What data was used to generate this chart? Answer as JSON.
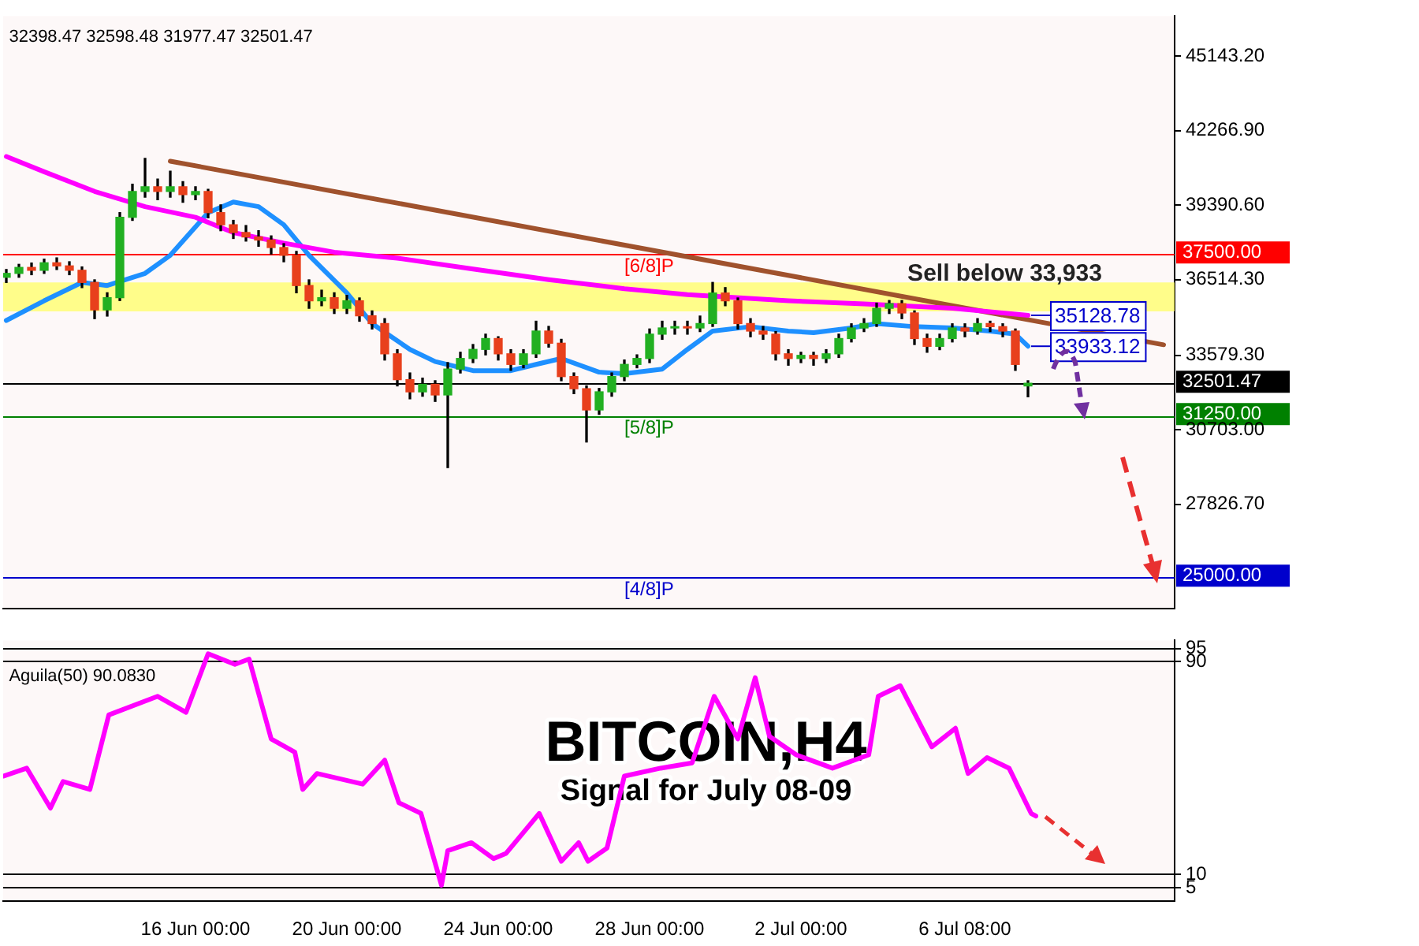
{
  "chart_data": [
    {
      "type": "candlestick",
      "x": [
        "--06-11T00:00",
        "--06-11T08:00",
        "--06-11T16:00",
        "--06-12T00:00",
        "--06-12T08:00",
        "--06-12T16:00",
        "--06-13T00:00",
        "--06-13T08:00",
        "--06-13T16:00",
        "--06-14T00:00",
        "--06-14T08:00",
        "--06-14T16:00",
        "--06-15T00:00",
        "--06-15T08:00",
        "--06-15T16:00",
        "--06-16T00:00",
        "--06-16T08:00",
        "--06-16T16:00",
        "--06-17T00:00",
        "--06-17T08:00",
        "--06-17T16:00",
        "--06-18T00:00",
        "--06-18T08:00",
        "--06-18T16:00",
        "--06-19T00:00",
        "--06-19T08:00",
        "--06-19T16:00",
        "--06-20T00:00",
        "--06-20T08:00",
        "--06-20T16:00",
        "--06-21T00:00",
        "--06-21T08:00",
        "--06-21T16:00",
        "--06-22T00:00",
        "--06-22T08:00",
        "--06-22T16:00",
        "--06-23T00:00",
        "--06-23T08:00",
        "--06-23T16:00",
        "--06-24T00:00",
        "--06-24T08:00",
        "--06-24T16:00",
        "--06-25T00:00",
        "--06-25T08:00",
        "--06-25T16:00",
        "--06-26T00:00",
        "--06-26T08:00",
        "--06-26T16:00",
        "--06-27T00:00",
        "--06-27T08:00",
        "--06-27T16:00",
        "--06-28T00:00",
        "--06-28T08:00",
        "--06-28T16:00",
        "--06-29T00:00",
        "--06-29T08:00",
        "--06-29T16:00",
        "--06-30T00:00",
        "--06-30T08:00",
        "--06-30T16:00",
        "--07-01T00:00",
        "--07-01T08:00",
        "--07-01T16:00",
        "--07-02T00:00",
        "--07-02T08:00",
        "--07-02T16:00",
        "--07-03T00:00",
        "--07-03T08:00",
        "--07-03T16:00",
        "--07-04T00:00",
        "--07-04T08:00",
        "--07-04T16:00",
        "--07-05T00:00",
        "--07-05T08:00",
        "--07-05T16:00",
        "--07-06T00:00",
        "--07-06T08:00",
        "--07-06T16:00",
        "--07-07T00:00",
        "--07-07T08:00",
        "--07-07T16:00",
        "--07-08T00:00"
      ],
      "ohlc": [
        [
          36600,
          36900,
          36400,
          36750
        ],
        [
          36750,
          37100,
          36600,
          36980
        ],
        [
          36980,
          37150,
          36700,
          36870
        ],
        [
          36870,
          37300,
          36750,
          37160
        ],
        [
          37160,
          37350,
          36900,
          37040
        ],
        [
          37040,
          37200,
          36700,
          36870
        ],
        [
          36870,
          37000,
          36200,
          36400
        ],
        [
          36400,
          36500,
          35000,
          35340
        ],
        [
          35340,
          36000,
          35100,
          35810
        ],
        [
          35810,
          39100,
          35700,
          38920
        ],
        [
          38920,
          40200,
          38800,
          39920
        ],
        [
          39920,
          41200,
          39700,
          40100
        ],
        [
          40100,
          40400,
          39600,
          39920
        ],
        [
          39920,
          40700,
          39700,
          40100
        ],
        [
          40100,
          40300,
          39500,
          39800
        ],
        [
          39800,
          40100,
          39600,
          39920
        ],
        [
          39920,
          40000,
          38900,
          39100
        ],
        [
          39100,
          39400,
          38400,
          38630
        ],
        [
          38630,
          38800,
          38100,
          38330
        ],
        [
          38330,
          38600,
          38000,
          38160
        ],
        [
          38160,
          38400,
          37800,
          38040
        ],
        [
          38040,
          38200,
          37500,
          37750
        ],
        [
          37750,
          37900,
          37200,
          37450
        ],
        [
          37450,
          37600,
          36000,
          36280
        ],
        [
          36280,
          36500,
          35400,
          35690
        ],
        [
          35690,
          36100,
          35500,
          35810
        ],
        [
          35810,
          36000,
          35200,
          35400
        ],
        [
          35400,
          35900,
          35200,
          35690
        ],
        [
          35690,
          35800,
          34900,
          35110
        ],
        [
          35110,
          35300,
          34600,
          34810
        ],
        [
          34810,
          35000,
          33400,
          33640
        ],
        [
          33640,
          33800,
          32400,
          32640
        ],
        [
          32640,
          32900,
          31900,
          32170
        ],
        [
          32170,
          32700,
          32000,
          32460
        ],
        [
          32460,
          32600,
          31800,
          32050
        ],
        [
          32050,
          33300,
          29240,
          33050
        ],
        [
          33050,
          33700,
          32900,
          33460
        ],
        [
          33460,
          34000,
          33300,
          33810
        ],
        [
          33810,
          34400,
          33600,
          34230
        ],
        [
          34230,
          34300,
          33400,
          33640
        ],
        [
          33640,
          33800,
          33000,
          33230
        ],
        [
          33230,
          33800,
          33100,
          33640
        ],
        [
          33640,
          34900,
          33500,
          34520
        ],
        [
          34520,
          34700,
          33900,
          34050
        ],
        [
          34050,
          34200,
          32600,
          32760
        ],
        [
          32760,
          32900,
          32100,
          32290
        ],
        [
          32290,
          32400,
          30230,
          31470
        ],
        [
          31470,
          32300,
          31300,
          32170
        ],
        [
          32170,
          32900,
          32000,
          32760
        ],
        [
          32760,
          33400,
          32600,
          33230
        ],
        [
          33230,
          33600,
          33100,
          33460
        ],
        [
          33460,
          34600,
          33300,
          34400
        ],
        [
          34400,
          34900,
          34200,
          34640
        ],
        [
          34640,
          34900,
          34400,
          34690
        ],
        [
          34690,
          34900,
          34400,
          34640
        ],
        [
          34640,
          35100,
          34500,
          34810
        ],
        [
          34810,
          36400,
          34700,
          35990
        ],
        [
          35990,
          36200,
          35500,
          35690
        ],
        [
          35690,
          35800,
          34600,
          34810
        ],
        [
          34810,
          35000,
          34300,
          34520
        ],
        [
          34520,
          34700,
          34200,
          34400
        ],
        [
          34400,
          34500,
          33400,
          33640
        ],
        [
          33640,
          33800,
          33200,
          33460
        ],
        [
          33460,
          33700,
          33300,
          33580
        ],
        [
          33580,
          33700,
          33200,
          33460
        ],
        [
          33460,
          33800,
          33300,
          33640
        ],
        [
          33640,
          34400,
          33500,
          34230
        ],
        [
          34230,
          34800,
          34100,
          34640
        ],
        [
          34640,
          35000,
          34500,
          34810
        ],
        [
          34810,
          35600,
          34700,
          35400
        ],
        [
          35400,
          35700,
          35200,
          35580
        ],
        [
          35580,
          35700,
          35000,
          35220
        ],
        [
          35220,
          35300,
          34000,
          34230
        ],
        [
          34230,
          34400,
          33700,
          33930
        ],
        [
          33930,
          34400,
          33800,
          34230
        ],
        [
          34230,
          34800,
          34100,
          34640
        ],
        [
          34640,
          34800,
          34300,
          34520
        ],
        [
          34520,
          35000,
          34400,
          34810
        ],
        [
          34810,
          34900,
          34500,
          34690
        ],
        [
          34690,
          34800,
          34300,
          34520
        ],
        [
          34520,
          34600,
          33000,
          33230
        ],
        [
          32398.47,
          32598.48,
          31977.47,
          32501.47
        ]
      ],
      "series": [
        {
          "type": "line",
          "color": "#ff00ff",
          "x": [
            "--06-11T00:00",
            "--06-12T00:00",
            "--06-13T08:00",
            "--06-14T16:00",
            "--06-16T00:00",
            "--06-17T00:00",
            "--06-18T08:00",
            "--06-19T16:00",
            "--06-21T08:00",
            "--06-23T08:00",
            "--06-25T08:00",
            "--06-27T08:00",
            "--06-29T00:00",
            "--07-01T16:00",
            "--07-03T16:00",
            "--07-06T00:00",
            "--07-08T00:00"
          ],
          "values": [
            41270,
            40680,
            39920,
            39330,
            38920,
            38330,
            37920,
            37570,
            37340,
            36920,
            36510,
            36160,
            35930,
            35690,
            35570,
            35400,
            35128.78
          ]
        },
        {
          "type": "line",
          "color": "#1e90ff",
          "x": [
            "--06-11T00:00",
            "--06-12T00:00",
            "--06-13T00:00",
            "--06-13T16:00",
            "--06-14T16:00",
            "--06-15T08:00",
            "--06-16T08:00",
            "--06-17T00:00",
            "--06-17T16:00",
            "--06-18T08:00",
            "--06-19T00:00",
            "--06-20T00:00",
            "--06-20T16:00",
            "--06-21T16:00",
            "--06-22T08:00",
            "--06-23T08:00",
            "--06-24T08:00",
            "--06-25T00:00",
            "--06-25T16:00",
            "--06-26T16:00",
            "--06-27T08:00",
            "--06-28T08:00",
            "--06-29T00:00",
            "--06-29T16:00",
            "--06-30T16:00",
            "--07-01T16:00",
            "--07-02T08:00",
            "--07-03T08:00",
            "--07-04T00:00",
            "--07-05T00:00",
            "--07-06T00:00",
            "--07-07T00:00",
            "--07-07T16:00",
            "--07-08T00:00"
          ],
          "values": [
            34930,
            35690,
            36400,
            36280,
            36750,
            37450,
            39100,
            39510,
            39330,
            38630,
            37450,
            35990,
            34810,
            33810,
            33340,
            32990,
            32990,
            33230,
            33460,
            32930,
            32870,
            33050,
            33810,
            34520,
            34690,
            34520,
            34460,
            34640,
            34810,
            34690,
            34640,
            34520,
            34400,
            33933.12
          ]
        },
        {
          "type": "line",
          "color": "#a0522d",
          "x": [
            "--06-15T08:00",
            "--07-11T14:00"
          ],
          "values": [
            41090,
            33990
          ]
        }
      ],
      "xlim": [
        "--06-10T22:00",
        "--07-11T21:00"
      ],
      "ylim": [
        23800,
        46700
      ],
      "yticks": [
        {
          "value": 27826.7,
          "label": "27826.70"
        },
        {
          "value": 30703,
          "label": "30703.00"
        },
        {
          "value": 33579.3,
          "label": "33579.30"
        },
        {
          "value": 36514.3,
          "label": "36514.30"
        },
        {
          "value": 39390.6,
          "label": "39390.60"
        },
        {
          "value": 42266.9,
          "label": "42266.90"
        },
        {
          "value": 45143.2,
          "label": "45143.20"
        }
      ],
      "tick_labels": "y",
      "ref_lines": [
        {
          "axis": "y",
          "value": 37500,
          "label": "37500.00",
          "color": "#ff0000"
        },
        {
          "axis": "y",
          "value": 32501.47,
          "label": "32501.47",
          "color": "#000000"
        },
        {
          "axis": "y",
          "value": 31250,
          "label": "31250.00",
          "color": "#008000"
        },
        {
          "axis": "y",
          "value": 25000,
          "label": "25000.00",
          "color": "#0000cc"
        }
      ],
      "bands": [
        {
          "axis": "y",
          "from": 35280,
          "to": 36400,
          "color": "#ffff66"
        }
      ],
      "annotations": [
        "32398.47 32598.48 31977.47 32501.47",
        "Sell below 33,933",
        {
          "text": "35128.78",
          "x": "--07-08T00:00",
          "y": 35128.78
        },
        {
          "text": "33933.12",
          "x": "--07-08T00:00",
          "y": 33933.12
        },
        {
          "text": "[6/8]P",
          "x": "--06-27T08:00",
          "y": 37500
        },
        {
          "text": "[5/8]P",
          "x": "--06-27T08:00",
          "y": 31250
        },
        {
          "text": "[4/8]P",
          "x": "--06-27T08:00",
          "y": 25000
        }
      ]
    },
    {
      "type": "line",
      "title": "BITCOIN,H4",
      "subtitle": "Signal for July 08-09",
      "series": [
        {
          "color": "#ff00ff",
          "x": [
            "--06-10T22:00",
            "--06-11T13:00",
            "--06-12T04:00",
            "--06-12T12:00",
            "--06-13T05:00",
            "--06-13T17:00",
            "--06-15T00:00",
            "--06-15T18:00",
            "--06-16T08:00",
            "--06-17T01:00",
            "--06-17T10:00",
            "--06-18T00:00",
            "--06-18T15:00",
            "--06-18T20:00",
            "--06-19T05:00",
            "--06-20T10:00",
            "--06-21T00:00",
            "--06-21T09:00",
            "--06-21T23:00",
            "--06-22T12:00",
            "--06-22T16:00",
            "--06-23T07:00",
            "--06-23T21:00",
            "--06-24T05:00",
            "--06-25T02:00",
            "--06-25T16:00",
            "--06-26T03:00",
            "--06-26T09:00",
            "--06-26T21:00",
            "--06-27T08:00",
            "--06-28T07:00",
            "--06-29T03:00",
            "--06-29T17:00",
            "--06-30T08:00",
            "--06-30T19:00",
            "--07-01T04:00",
            "--07-01T21:00",
            "--07-02T20:00",
            "--07-03T19:00",
            "--07-04T01:00",
            "--07-04T15:00",
            "--07-05T11:00",
            "--07-06T02:00",
            "--07-06T10:00",
            "--07-06T22:00",
            "--07-07T12:00",
            "--07-08T02:00",
            "--07-08T05:00"
          ],
          "values": [
            47,
            50,
            35,
            45,
            42,
            70,
            77,
            71,
            93,
            89,
            91,
            61,
            56,
            42,
            48,
            44,
            53,
            37,
            33,
            6,
            19,
            22,
            16,
            18,
            33,
            15,
            22,
            15,
            20,
            47,
            50,
            52,
            77,
            61,
            84,
            62,
            55,
            50,
            55,
            77,
            81,
            58,
            65,
            48,
            54,
            50,
            33,
            32
          ]
        }
      ],
      "xlim": [
        "--06-10T22:00",
        "--07-11T21:00"
      ],
      "xticks": [
        {
          "value": "--06-16T00:00",
          "label": "16 Jun 00:00"
        },
        {
          "value": "--06-20T00:00",
          "label": "20 Jun 00:00"
        },
        {
          "value": "--06-24T00:00",
          "label": "24 Jun 00:00"
        },
        {
          "value": "--06-28T00:00",
          "label": "28 Jun 00:00"
        },
        {
          "value": "--07-02T00:00",
          "label": "2 Jul 00:00"
        },
        {
          "value": "--07-06T08:00",
          "label": "6 Jul 08:00"
        }
      ],
      "ylim": [
        0,
        98
      ],
      "yticks": [
        5,
        10,
        90,
        95
      ],
      "grid": "y",
      "annotations": [
        "Aguila(50) 90.0830"
      ]
    }
  ]
}
